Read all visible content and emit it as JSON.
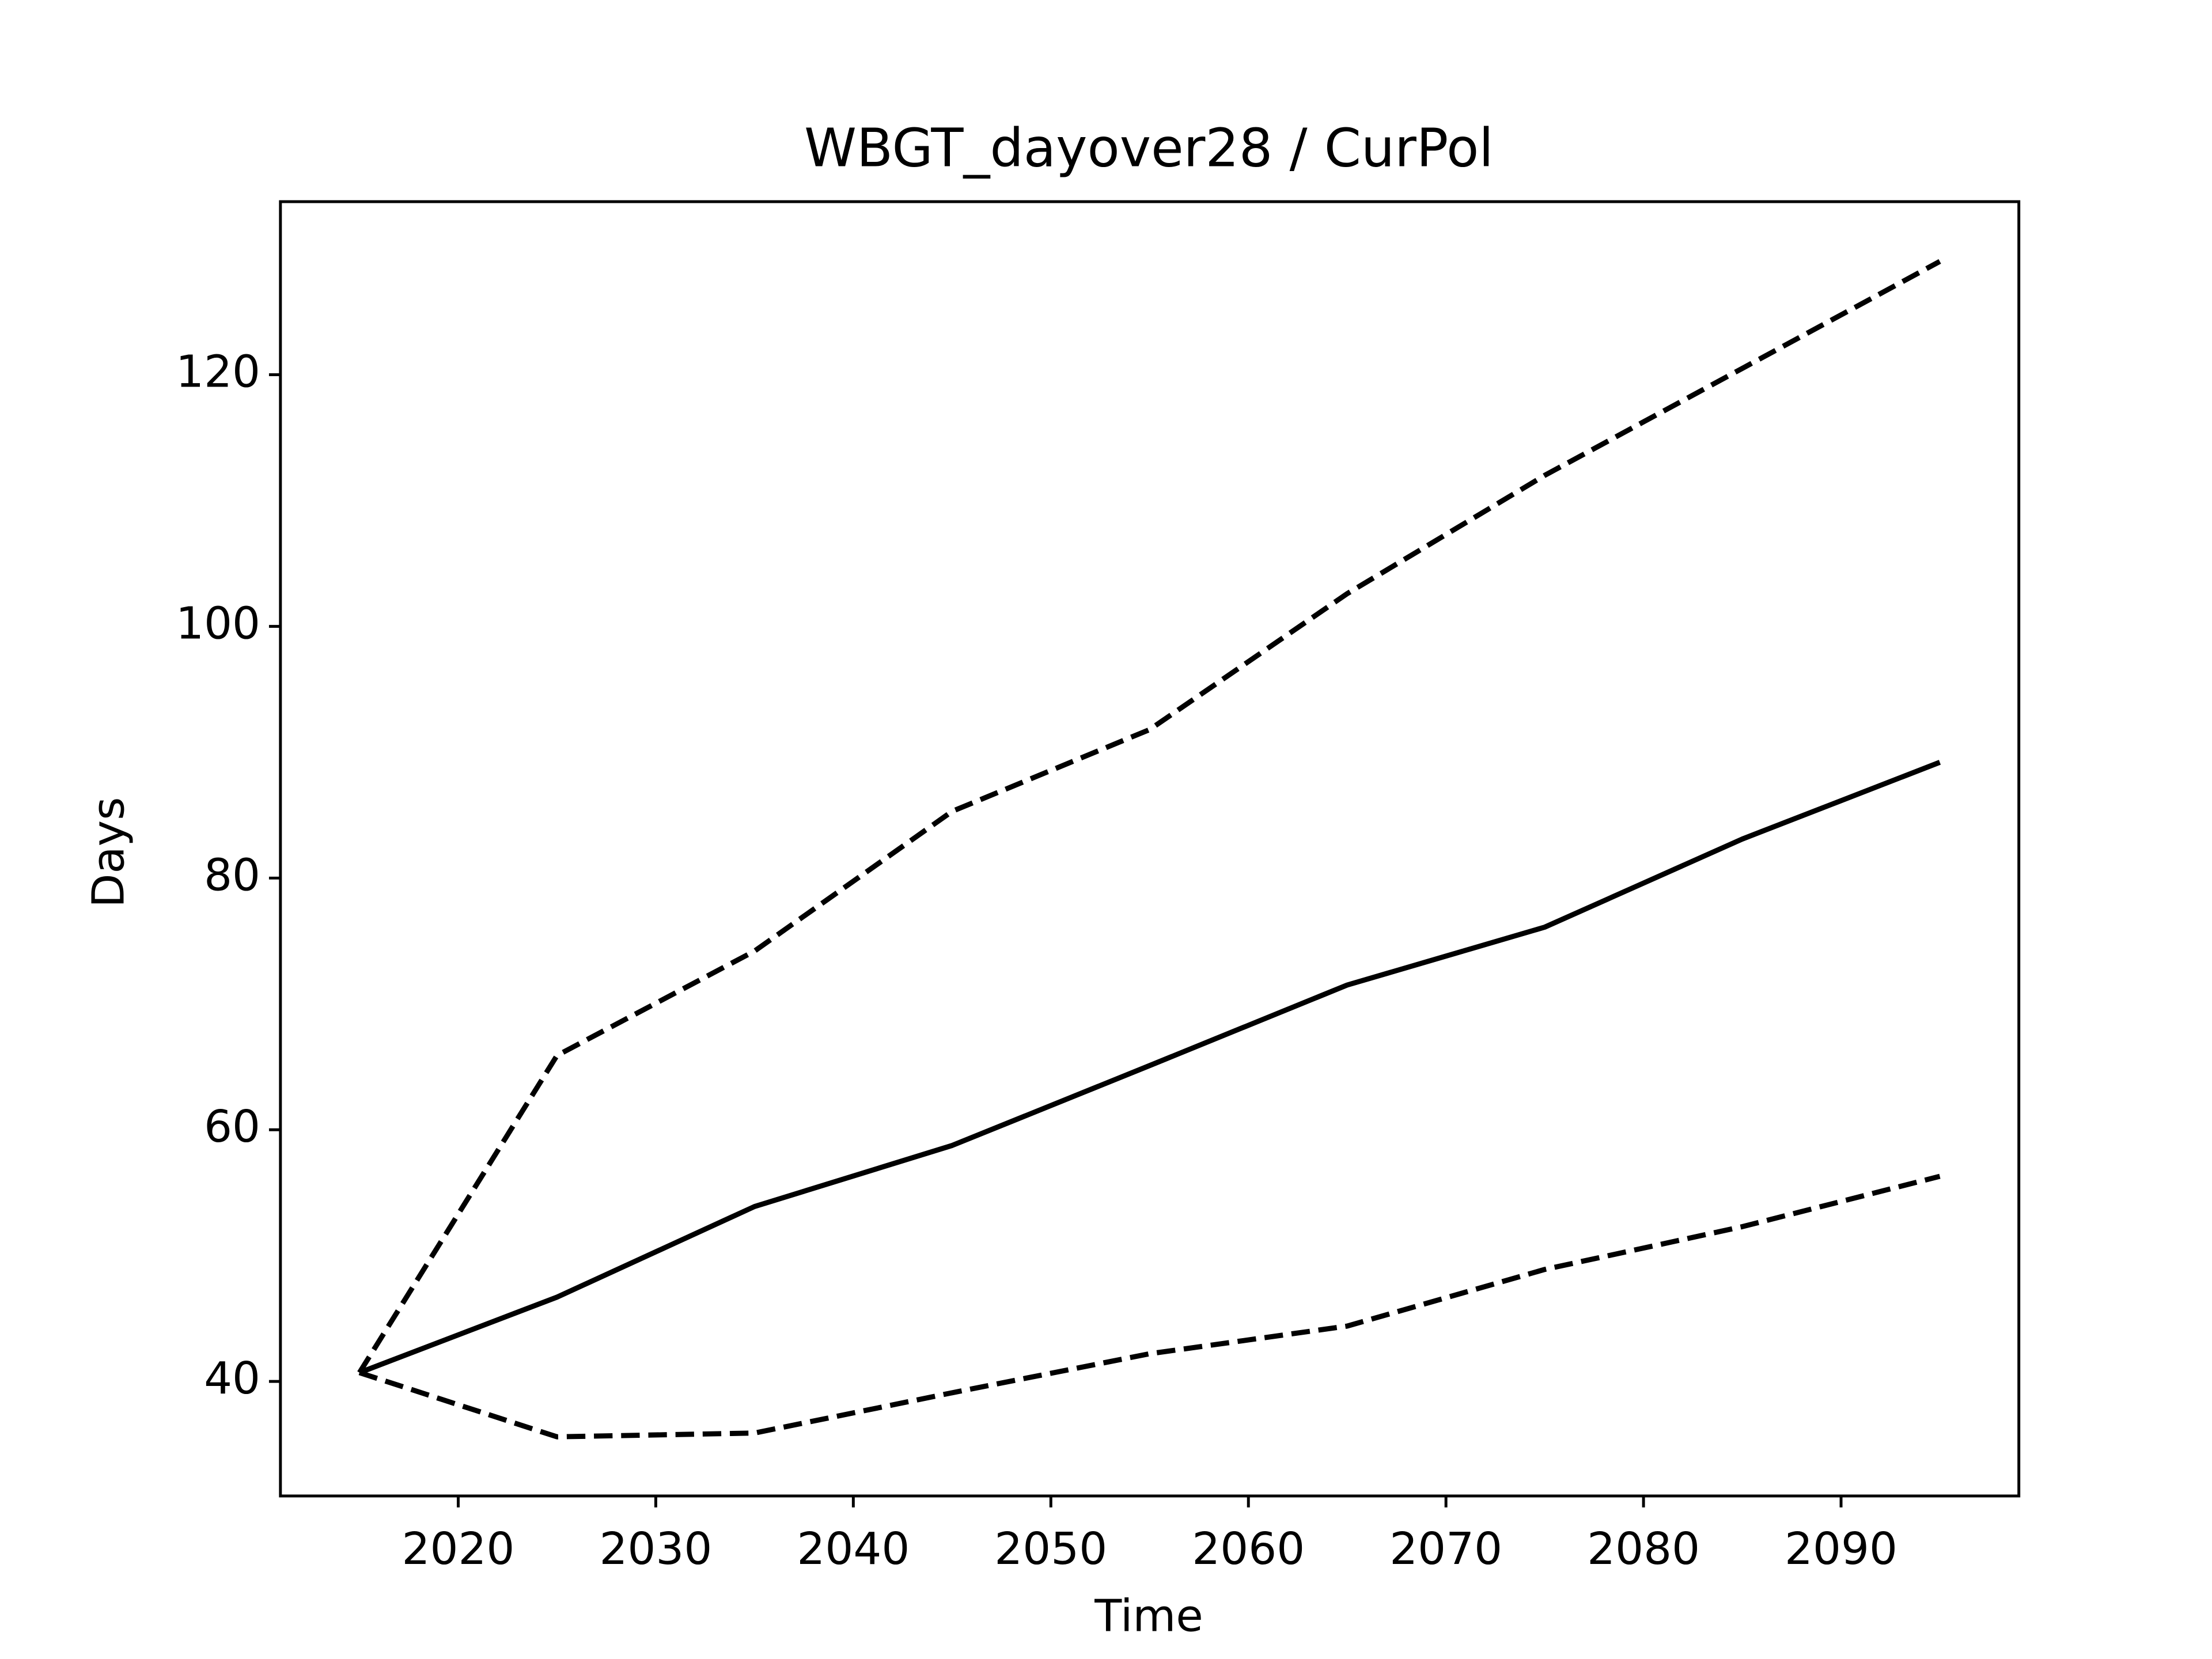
{
  "chart_data": {
    "type": "line",
    "title": "WBGT_dayover28 / CurPol",
    "xlabel": "Time",
    "ylabel": "Days",
    "x": [
      2015,
      2025,
      2035,
      2045,
      2055,
      2065,
      2075,
      2085,
      2095
    ],
    "series": [
      {
        "color": "#000000",
        "style": "solid",
        "values": [
          40.7,
          46.7,
          53.9,
          58.75,
          65.1,
          71.5,
          76.1,
          83.1,
          89.2
        ]
      },
      {
        "color": "#000000",
        "style": "dashed",
        "values": [
          40.7,
          65.9,
          74.2,
          85.3,
          91.8,
          102.6,
          112.0,
          120.5,
          129.0
        ]
      },
      {
        "color": "#000000",
        "style": "dashed",
        "values": [
          40.7,
          35.6,
          35.9,
          39.1,
          42.2,
          44.4,
          48.9,
          52.3,
          56.3
        ]
      }
    ],
    "xlim": [
      2011,
      2099
    ],
    "ylim": [
      30.9,
      133.75
    ],
    "xticks": [
      2020,
      2030,
      2040,
      2050,
      2060,
      2070,
      2080,
      2090
    ],
    "yticks": [
      40,
      60,
      80,
      100,
      120
    ],
    "grid": false
  }
}
